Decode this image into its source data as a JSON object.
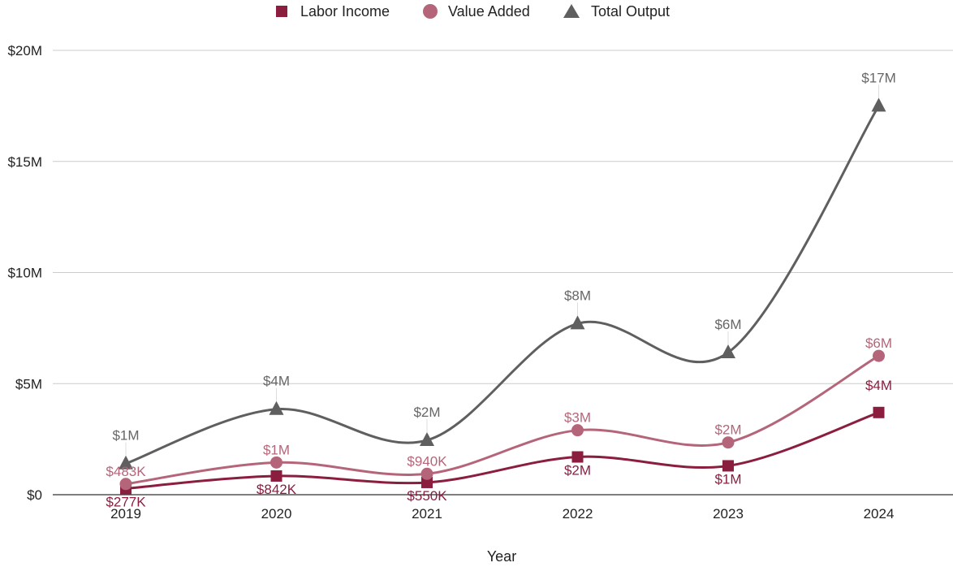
{
  "chart_data": {
    "type": "line",
    "smooth": true,
    "x": [
      "2019",
      "2020",
      "2021",
      "2022",
      "2023",
      "2024"
    ],
    "xlabel": "Year",
    "ylabel": "",
    "ylim": [
      0,
      20000000
    ],
    "y_ticks": [
      {
        "value": 0,
        "label": "$0"
      },
      {
        "value": 5000000,
        "label": "$5M"
      },
      {
        "value": 10000000,
        "label": "$10M"
      },
      {
        "value": 15000000,
        "label": "$15M"
      },
      {
        "value": 20000000,
        "label": "$20M"
      }
    ],
    "grid": true,
    "legend_position": "top",
    "series": [
      {
        "name": "Labor Income",
        "marker": "square",
        "color": "#8b1e3f",
        "values": [
          277000,
          842000,
          550000,
          1700000,
          1300000,
          3700000
        ],
        "labels": [
          "$277K",
          "$842K",
          "$550K",
          "$2M",
          "$1M",
          "$4M"
        ]
      },
      {
        "name": "Value Added",
        "marker": "circle",
        "color": "#b5657a",
        "values": [
          483000,
          1450000,
          940000,
          2900000,
          2350000,
          6250000
        ],
        "labels": [
          "$483K",
          "$1M",
          "$940K",
          "$3M",
          "$2M",
          "$6M"
        ]
      },
      {
        "name": "Total Output",
        "marker": "triangle",
        "color": "#5f5f5f",
        "values": [
          1400000,
          3850000,
          2450000,
          7700000,
          6400000,
          17500000
        ],
        "labels": [
          "$1M",
          "$4M",
          "$2M",
          "$8M",
          "$6M",
          "$17M"
        ]
      }
    ]
  }
}
